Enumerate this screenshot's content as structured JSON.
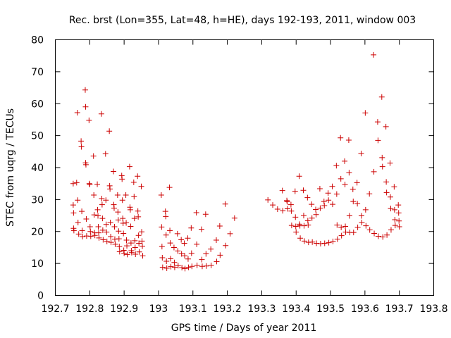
{
  "chart_data": {
    "type": "scatter",
    "title": "Rec. brst (Lon=355, Lat=48, h=HE), days 192-193, 2011, window 003",
    "xlabel": "GPS time / Days of year 2011",
    "ylabel": "STEC from uqrg / TECUs",
    "xlim": [
      192.7,
      193.8
    ],
    "ylim": [
      0,
      80
    ],
    "xticks": [
      "192.7",
      "192.8",
      "192.9",
      "193",
      "193.1",
      "193.2",
      "193.3",
      "193.4",
      "193.5",
      "193.6",
      "193.7",
      "193.8"
    ],
    "yticks": [
      "0",
      "10",
      "20",
      "30",
      "40",
      "50",
      "60",
      "70",
      "80"
    ],
    "grid": false,
    "marker": "+",
    "marker_color": "#cc0000",
    "axis_color": "#000000",
    "series": [
      {
        "name": "STEC",
        "points": [
          [
            192.752,
            35.0
          ],
          [
            192.752,
            28.3
          ],
          [
            192.753,
            25.8
          ],
          [
            192.753,
            21.0
          ],
          [
            192.754,
            20.3
          ],
          [
            192.762,
            35.3
          ],
          [
            192.764,
            57.2
          ],
          [
            192.765,
            29.8
          ],
          [
            192.766,
            22.8
          ],
          [
            192.768,
            19.2
          ],
          [
            192.775,
            48.3
          ],
          [
            192.776,
            46.5
          ],
          [
            192.777,
            26.3
          ],
          [
            192.778,
            20.3
          ],
          [
            192.779,
            18.4
          ],
          [
            192.787,
            64.3
          ],
          [
            192.788,
            59.0
          ],
          [
            192.788,
            41.5
          ],
          [
            192.789,
            40.9
          ],
          [
            192.79,
            23.9
          ],
          [
            192.791,
            18.6
          ],
          [
            192.798,
            54.8
          ],
          [
            192.799,
            35.0
          ],
          [
            192.8,
            34.7
          ],
          [
            192.801,
            21.5
          ],
          [
            192.802,
            20.0
          ],
          [
            192.803,
            18.5
          ],
          [
            192.811,
            43.6
          ],
          [
            192.812,
            31.4
          ],
          [
            192.813,
            25.2
          ],
          [
            192.814,
            19.6
          ],
          [
            192.815,
            18.8
          ],
          [
            192.822,
            34.8
          ],
          [
            192.823,
            26.8
          ],
          [
            192.824,
            24.9
          ],
          [
            192.825,
            21.5
          ],
          [
            192.826,
            19.6
          ],
          [
            192.827,
            18.0
          ],
          [
            192.834,
            56.8
          ],
          [
            192.835,
            30.3
          ],
          [
            192.836,
            28.4
          ],
          [
            192.837,
            24.1
          ],
          [
            192.838,
            20.4
          ],
          [
            192.839,
            17.4
          ],
          [
            192.846,
            44.3
          ],
          [
            192.847,
            29.8
          ],
          [
            192.848,
            22.2
          ],
          [
            192.849,
            19.8
          ],
          [
            192.85,
            16.9
          ],
          [
            192.857,
            51.4
          ],
          [
            192.858,
            34.3
          ],
          [
            192.859,
            33.3
          ],
          [
            192.86,
            22.8
          ],
          [
            192.861,
            18.4
          ],
          [
            192.862,
            16.6
          ],
          [
            192.869,
            38.8
          ],
          [
            192.87,
            28.4
          ],
          [
            192.871,
            27.3
          ],
          [
            192.872,
            21.5
          ],
          [
            192.873,
            17.6
          ],
          [
            192.874,
            16.0
          ],
          [
            192.881,
            31.4
          ],
          [
            192.882,
            26.1
          ],
          [
            192.883,
            23.6
          ],
          [
            192.884,
            20.1
          ],
          [
            192.885,
            17.7
          ],
          [
            192.886,
            15.3
          ],
          [
            192.887,
            13.7
          ],
          [
            192.893,
            37.5
          ],
          [
            192.894,
            36.4
          ],
          [
            192.895,
            29.8
          ],
          [
            192.896,
            24.1
          ],
          [
            192.897,
            22.6
          ],
          [
            192.898,
            19.4
          ],
          [
            192.899,
            14.1
          ],
          [
            192.9,
            13.2
          ],
          [
            192.905,
            31.4
          ],
          [
            192.906,
            22.7
          ],
          [
            192.907,
            17.3
          ],
          [
            192.908,
            15.5
          ],
          [
            192.909,
            12.8
          ],
          [
            192.916,
            40.3
          ],
          [
            192.917,
            27.6
          ],
          [
            192.918,
            26.8
          ],
          [
            192.919,
            21.6
          ],
          [
            192.92,
            16.4
          ],
          [
            192.921,
            14.0
          ],
          [
            192.922,
            13.4
          ],
          [
            192.928,
            35.4
          ],
          [
            192.929,
            30.9
          ],
          [
            192.93,
            24.1
          ],
          [
            192.931,
            17.1
          ],
          [
            192.932,
            15.0
          ],
          [
            192.933,
            12.9
          ],
          [
            192.939,
            37.3
          ],
          [
            192.94,
            26.4
          ],
          [
            192.941,
            24.6
          ],
          [
            192.942,
            18.8
          ],
          [
            192.943,
            16.3
          ],
          [
            192.944,
            13.6
          ],
          [
            192.95,
            34.1
          ],
          [
            192.951,
            19.9
          ],
          [
            192.952,
            17.0
          ],
          [
            192.953,
            15.4
          ],
          [
            192.954,
            12.4
          ],
          [
            193.008,
            31.4
          ],
          [
            193.009,
            21.4
          ],
          [
            193.01,
            15.3
          ],
          [
            193.011,
            11.8
          ],
          [
            193.012,
            8.8
          ],
          [
            193.02,
            26.3
          ],
          [
            193.021,
            24.7
          ],
          [
            193.022,
            18.9
          ],
          [
            193.023,
            10.7
          ],
          [
            193.024,
            8.5
          ],
          [
            193.032,
            33.8
          ],
          [
            193.033,
            20.3
          ],
          [
            193.034,
            16.4
          ],
          [
            193.035,
            11.5
          ],
          [
            193.036,
            9.0
          ],
          [
            193.045,
            15.0
          ],
          [
            193.046,
            10.3
          ],
          [
            193.047,
            8.8
          ],
          [
            193.055,
            19.3
          ],
          [
            193.056,
            13.9
          ],
          [
            193.057,
            9.3
          ],
          [
            193.066,
            17.4
          ],
          [
            193.067,
            13.0
          ],
          [
            193.068,
            8.7
          ],
          [
            193.075,
            16.3
          ],
          [
            193.076,
            12.4
          ],
          [
            193.077,
            8.4
          ],
          [
            193.085,
            17.9
          ],
          [
            193.086,
            11.4
          ],
          [
            193.087,
            8.8
          ],
          [
            193.095,
            21.1
          ],
          [
            193.096,
            13.2
          ],
          [
            193.097,
            9.1
          ],
          [
            193.11,
            25.9
          ],
          [
            193.111,
            16.0
          ],
          [
            193.112,
            9.4
          ],
          [
            193.125,
            20.7
          ],
          [
            193.126,
            11.2
          ],
          [
            193.127,
            9.1
          ],
          [
            193.137,
            25.4
          ],
          [
            193.138,
            13.0
          ],
          [
            193.139,
            9.2
          ],
          [
            193.152,
            14.5
          ],
          [
            193.153,
            9.4
          ],
          [
            193.168,
            17.3
          ],
          [
            193.169,
            10.6
          ],
          [
            193.178,
            21.7
          ],
          [
            193.179,
            12.6
          ],
          [
            193.194,
            28.6
          ],
          [
            193.195,
            15.6
          ],
          [
            193.208,
            19.3
          ],
          [
            193.221,
            24.2
          ],
          [
            193.318,
            29.9
          ],
          [
            193.332,
            28.3
          ],
          [
            193.346,
            27.0
          ],
          [
            193.36,
            32.8
          ],
          [
            193.361,
            26.5
          ],
          [
            193.373,
            29.7
          ],
          [
            193.374,
            29.3
          ],
          [
            193.375,
            27.1
          ],
          [
            193.385,
            28.4
          ],
          [
            193.386,
            26.4
          ],
          [
            193.387,
            21.9
          ],
          [
            193.397,
            32.6
          ],
          [
            193.398,
            24.5
          ],
          [
            193.399,
            21.6
          ],
          [
            193.4,
            19.8
          ],
          [
            193.409,
            37.3
          ],
          [
            193.41,
            22.3
          ],
          [
            193.411,
            21.8
          ],
          [
            193.412,
            17.9
          ],
          [
            193.421,
            32.9
          ],
          [
            193.422,
            25.0
          ],
          [
            193.423,
            21.8
          ],
          [
            193.424,
            17.0
          ],
          [
            193.433,
            30.6
          ],
          [
            193.434,
            23.4
          ],
          [
            193.435,
            22.0
          ],
          [
            193.436,
            16.6
          ],
          [
            193.445,
            28.5
          ],
          [
            193.446,
            24.2
          ],
          [
            193.447,
            16.7
          ],
          [
            193.457,
            26.9
          ],
          [
            193.458,
            25.3
          ],
          [
            193.459,
            16.3
          ],
          [
            193.469,
            33.4
          ],
          [
            193.47,
            27.3
          ],
          [
            193.471,
            16.2
          ],
          [
            193.481,
            29.4
          ],
          [
            193.482,
            28.1
          ],
          [
            193.483,
            16.3
          ],
          [
            193.493,
            32.0
          ],
          [
            193.494,
            29.8
          ],
          [
            193.495,
            16.5
          ],
          [
            193.505,
            34.1
          ],
          [
            193.506,
            28.5
          ],
          [
            193.507,
            16.9
          ],
          [
            193.517,
            40.6
          ],
          [
            193.518,
            31.7
          ],
          [
            193.519,
            22.0
          ],
          [
            193.52,
            17.6
          ],
          [
            193.529,
            49.3
          ],
          [
            193.53,
            36.5
          ],
          [
            193.531,
            21.3
          ],
          [
            193.532,
            18.7
          ],
          [
            193.541,
            42.0
          ],
          [
            193.542,
            34.7
          ],
          [
            193.543,
            21.6
          ],
          [
            193.544,
            19.8
          ],
          [
            193.553,
            48.6
          ],
          [
            193.554,
            38.4
          ],
          [
            193.555,
            24.9
          ],
          [
            193.556,
            19.7
          ],
          [
            193.565,
            33.2
          ],
          [
            193.566,
            29.4
          ],
          [
            193.567,
            19.7
          ],
          [
            193.577,
            35.3
          ],
          [
            193.578,
            28.7
          ],
          [
            193.579,
            21.3
          ],
          [
            193.589,
            44.4
          ],
          [
            193.59,
            24.9
          ],
          [
            193.591,
            22.8
          ],
          [
            193.601,
            57.1
          ],
          [
            193.602,
            26.8
          ],
          [
            193.603,
            21.8
          ],
          [
            193.613,
            31.8
          ],
          [
            193.614,
            20.5
          ],
          [
            193.625,
            75.3
          ],
          [
            193.626,
            38.7
          ],
          [
            193.627,
            19.4
          ],
          [
            193.637,
            54.3
          ],
          [
            193.638,
            48.5
          ],
          [
            193.639,
            18.5
          ],
          [
            193.649,
            62.1
          ],
          [
            193.65,
            43.1
          ],
          [
            193.651,
            40.3
          ],
          [
            193.652,
            18.3
          ],
          [
            193.661,
            52.8
          ],
          [
            193.662,
            35.5
          ],
          [
            193.663,
            32.2
          ],
          [
            193.664,
            18.9
          ],
          [
            193.673,
            41.4
          ],
          [
            193.674,
            30.8
          ],
          [
            193.675,
            27.2
          ],
          [
            193.676,
            20.5
          ],
          [
            193.685,
            34.0
          ],
          [
            193.686,
            26.8
          ],
          [
            193.687,
            23.7
          ],
          [
            193.688,
            21.9
          ],
          [
            193.697,
            28.3
          ],
          [
            193.698,
            25.8
          ],
          [
            193.699,
            23.3
          ],
          [
            193.7,
            21.5
          ]
        ]
      }
    ]
  }
}
